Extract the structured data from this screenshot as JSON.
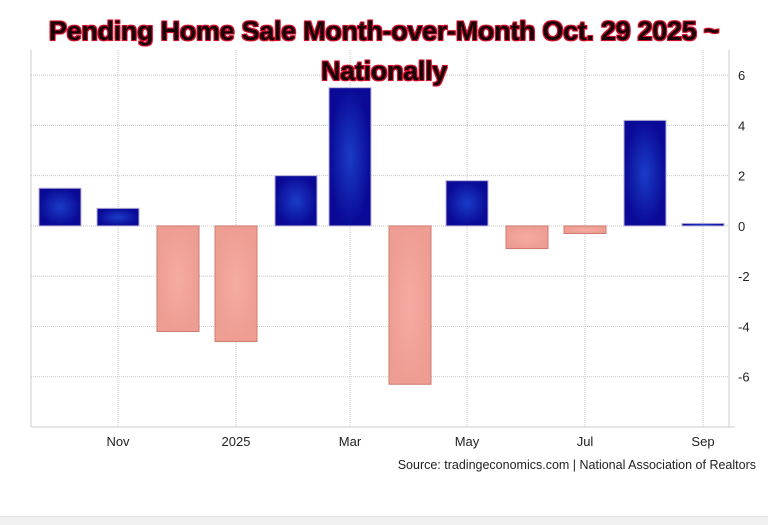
{
  "chart_data": {
    "type": "bar",
    "title": "Pending Home Sale Month-over-Month Oct. 29 2025 ~ Nationally",
    "title_lines": [
      "Pending Home Sale Month-over-Month Oct. 29 2025 ~",
      "Nationally"
    ],
    "categories": [
      "Oct 2024",
      "Nov 2024",
      "Dec 2024",
      "Jan 2025",
      "Feb 2025",
      "Mar 2025",
      "Apr 2025",
      "May 2025",
      "Jun 2025",
      "Jul 2025",
      "Aug 2025",
      "Sep 2025"
    ],
    "values": [
      1.5,
      0.7,
      -4.2,
      -4.6,
      2.0,
      5.5,
      -6.3,
      1.8,
      -0.9,
      -0.3,
      4.2,
      0.1
    ],
    "x_tick_labels": [
      {
        "label": "Nov",
        "category": "Nov 2024"
      },
      {
        "label": "2025",
        "category": "Jan 2025"
      },
      {
        "label": "Mar",
        "category": "Mar 2025"
      },
      {
        "label": "May",
        "category": "May 2025"
      },
      {
        "label": "Jul",
        "category": "Jul 2025"
      },
      {
        "label": "Sep",
        "category": "Sep 2025"
      }
    ],
    "y_ticks": [
      6,
      4,
      2,
      0,
      -2,
      -4,
      -6
    ],
    "ylim": [
      -8,
      7
    ],
    "y_axis_position": "right",
    "grid": true,
    "xlabel": "",
    "ylabel": "",
    "colors": {
      "positive": "#0a0a96",
      "positive_highlight": "#1030c0",
      "negative": "#f2a49a",
      "negative_border": "#d07a70",
      "grid": "#cccccc"
    },
    "source": "Source: tradingeconomics.com | National Association of Realtors"
  }
}
